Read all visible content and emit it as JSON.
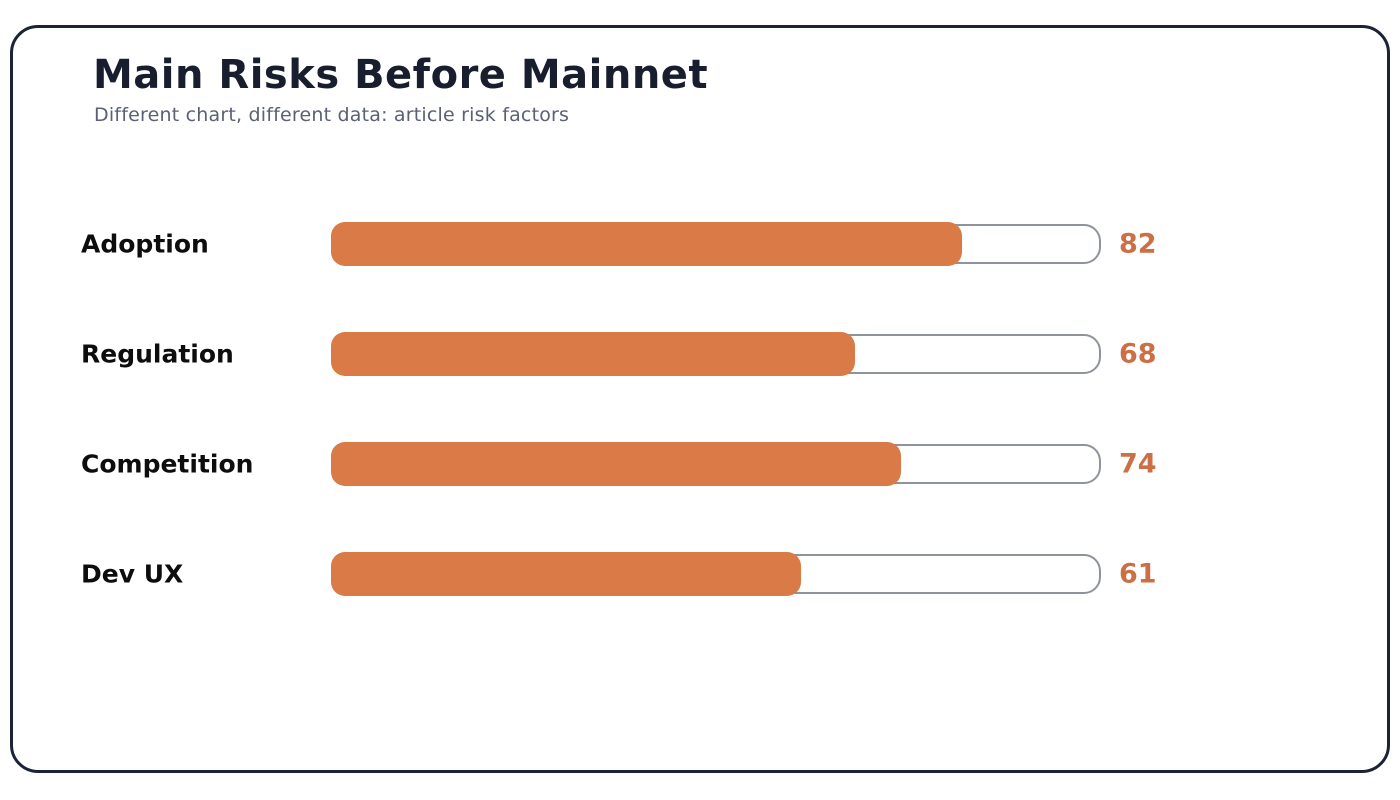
{
  "chart_data": {
    "type": "bar",
    "orientation": "horizontal",
    "title": "Main Risks Before Mainnet",
    "subtitle": "Different chart, different data: article risk factors",
    "categories": [
      "Adoption",
      "Regulation",
      "Competition",
      "Dev UX"
    ],
    "values": [
      82,
      68,
      74,
      61
    ],
    "xlim": [
      0,
      100
    ],
    "grid": false,
    "legend": false,
    "value_labels_position": "right",
    "colors": {
      "bar_fill": "#d97a47",
      "value_text": "#cd6f45",
      "track_border": "#8f939c",
      "track_fill": "#ffffff",
      "card_border": "#1b2335",
      "title_text": "#191e2e",
      "subtitle_text": "#5a6175",
      "label_text": "#0d0d0d"
    }
  }
}
